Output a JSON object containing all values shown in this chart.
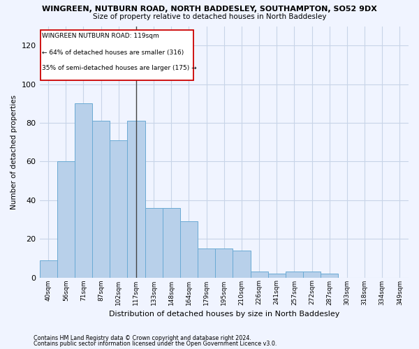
{
  "title": "WINGREEN, NUTBURN ROAD, NORTH BADDESLEY, SOUTHAMPTON, SO52 9DX",
  "subtitle": "Size of property relative to detached houses in North Baddesley",
  "xlabel": "Distribution of detached houses by size in North Baddesley",
  "ylabel": "Number of detached properties",
  "categories": [
    "40sqm",
    "56sqm",
    "71sqm",
    "87sqm",
    "102sqm",
    "117sqm",
    "133sqm",
    "148sqm",
    "164sqm",
    "179sqm",
    "195sqm",
    "210sqm",
    "226sqm",
    "241sqm",
    "257sqm",
    "272sqm",
    "287sqm",
    "303sqm",
    "318sqm",
    "334sqm",
    "349sqm"
  ],
  "values": [
    9,
    60,
    90,
    81,
    71,
    81,
    36,
    36,
    29,
    15,
    15,
    14,
    3,
    2,
    3,
    3,
    2,
    0,
    0,
    0,
    0
  ],
  "highlight_index": 5,
  "bar_color": "#b8d0ea",
  "bar_edge_color": "#6aaad4",
  "highlight_line_color": "#444444",
  "annotation_box_color": "#ffffff",
  "annotation_border_color": "#cc0000",
  "annotation_text_line1": "WINGREEN NUTBURN ROAD: 119sqm",
  "annotation_text_line2": "← 64% of detached houses are smaller (316)",
  "annotation_text_line3": "35% of semi-detached houses are larger (175) →",
  "ylim": [
    0,
    130
  ],
  "yticks": [
    0,
    20,
    40,
    60,
    80,
    100,
    120
  ],
  "background_color": "#f0f4ff",
  "grid_color": "#c8d4e8",
  "footnote1": "Contains HM Land Registry data © Crown copyright and database right 2024.",
  "footnote2": "Contains public sector information licensed under the Open Government Licence v3.0."
}
